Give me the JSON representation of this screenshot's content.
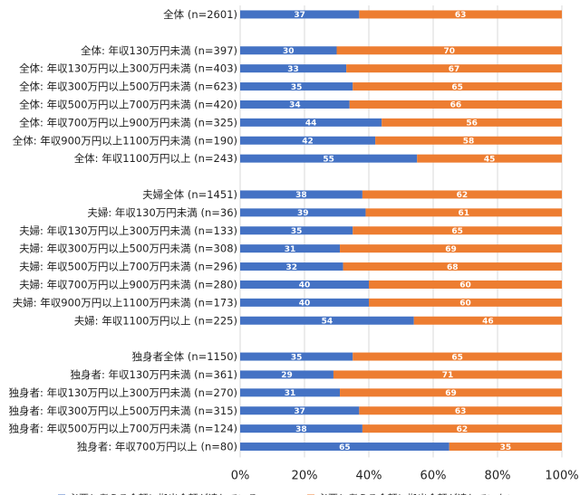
{
  "chart_data": {
    "type": "bar",
    "orientation": "horizontal",
    "stacked": "100%",
    "rows": [
      {
        "label": "全体 (n=2601)",
        "a": 37,
        "b": 63,
        "gap_before": 0
      },
      {
        "label": "全体: 年収130万円未満 (n=397)",
        "a": 30,
        "b": 70,
        "gap_before": 1
      },
      {
        "label": "全体: 年収130万円以上300万円未満 (n=403)",
        "a": 33,
        "b": 67,
        "gap_before": 0
      },
      {
        "label": "全体: 年収300万円以上500万円未満 (n=623)",
        "a": 35,
        "b": 65,
        "gap_before": 0
      },
      {
        "label": "全体: 年収500万円以上700万円未満 (n=420)",
        "a": 34,
        "b": 66,
        "gap_before": 0
      },
      {
        "label": "全体: 年収700万円以上900万円未満 (n=325)",
        "a": 44,
        "b": 56,
        "gap_before": 0
      },
      {
        "label": "全体: 年収900万円以上1100万円未満 (n=190)",
        "a": 42,
        "b": 58,
        "gap_before": 0
      },
      {
        "label": "全体: 年収1100万円以上 (n=243)",
        "a": 55,
        "b": 45,
        "gap_before": 0
      },
      {
        "label": "夫婦全体 (n=1451)",
        "a": 38,
        "b": 62,
        "gap_before": 1
      },
      {
        "label": "夫婦: 年収130万円未満 (n=36)",
        "a": 39,
        "b": 61,
        "gap_before": 0
      },
      {
        "label": "夫婦: 年収130万円以上300万円未満 (n=133)",
        "a": 35,
        "b": 65,
        "gap_before": 0
      },
      {
        "label": "夫婦: 年収300万円以上500万円未満 (n=308)",
        "a": 31,
        "b": 69,
        "gap_before": 0
      },
      {
        "label": "夫婦: 年収500万円以上700万円未満 (n=296)",
        "a": 32,
        "b": 68,
        "gap_before": 0
      },
      {
        "label": "夫婦: 年収700万円以上900万円未満 (n=280)",
        "a": 40,
        "b": 60,
        "gap_before": 0
      },
      {
        "label": "夫婦: 年収900万円以上1100万円未満 (n=173)",
        "a": 40,
        "b": 60,
        "gap_before": 0
      },
      {
        "label": "夫婦: 年収1100万円以上 (n=225)",
        "a": 54,
        "b": 46,
        "gap_before": 0
      },
      {
        "label": "独身者全体 (n=1150)",
        "a": 35,
        "b": 65,
        "gap_before": 1
      },
      {
        "label": "独身者: 年収130万円未満 (n=361)",
        "a": 29,
        "b": 71,
        "gap_before": 0
      },
      {
        "label": "独身者: 年収130万円以上300万円未満 (n=270)",
        "a": 31,
        "b": 69,
        "gap_before": 0
      },
      {
        "label": "独身者: 年収300万円以上500万円未満 (n=315)",
        "a": 37,
        "b": 63,
        "gap_before": 0
      },
      {
        "label": "独身者: 年収500万円以上700万円未満 (n=124)",
        "a": 38,
        "b": 62,
        "gap_before": 0
      },
      {
        "label": "独身者: 年収700万円以上 (n=80)",
        "a": 65,
        "b": 35,
        "gap_before": 0
      }
    ],
    "series": [
      {
        "name": "必要と考える金額に拠出金額が達している。",
        "key": "a",
        "color": "#4472C4"
      },
      {
        "name": "必要と考える金額に拠出金額が達していない。",
        "key": "b",
        "color": "#ED7D31"
      }
    ],
    "xticks": [
      "0%",
      "20%",
      "40%",
      "60%",
      "80%",
      "100%"
    ],
    "xlim": [
      0,
      100
    ],
    "legend_position": "bottom"
  }
}
